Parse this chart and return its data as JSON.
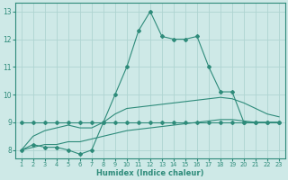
{
  "xlabel": "Humidex (Indice chaleur)",
  "x": [
    1,
    2,
    3,
    4,
    5,
    6,
    7,
    8,
    9,
    10,
    11,
    12,
    13,
    14,
    15,
    16,
    17,
    18,
    19,
    20,
    21,
    22,
    23
  ],
  "line_peak_y": [
    8.0,
    8.2,
    8.1,
    8.1,
    8.0,
    7.85,
    8.0,
    9.0,
    10.0,
    11.0,
    12.3,
    13.0,
    12.1,
    12.0,
    12.0,
    12.1,
    11.0,
    10.1,
    10.1,
    9.0,
    9.0,
    9.0,
    9.0
  ],
  "line_flat_y": [
    9.0,
    9.0,
    9.0,
    9.0,
    9.0,
    9.0,
    9.0,
    9.0,
    9.0,
    9.0,
    9.0,
    9.0,
    9.0,
    9.0,
    9.0,
    9.0,
    9.0,
    9.0,
    9.0,
    9.0,
    9.0,
    9.0,
    9.0
  ],
  "line_ramp_upper_y": [
    8.0,
    8.5,
    8.7,
    8.8,
    8.9,
    8.8,
    8.8,
    9.0,
    9.3,
    9.5,
    9.55,
    9.6,
    9.65,
    9.7,
    9.75,
    9.8,
    9.85,
    9.9,
    9.85,
    9.7,
    9.5,
    9.3,
    9.2
  ],
  "line_ramp_lower_y": [
    8.0,
    8.1,
    8.2,
    8.2,
    8.3,
    8.3,
    8.4,
    8.5,
    8.6,
    8.7,
    8.75,
    8.8,
    8.85,
    8.9,
    8.95,
    9.0,
    9.05,
    9.1,
    9.1,
    9.05,
    9.0,
    9.0,
    9.0
  ],
  "line_color": "#2e8b7a",
  "bg_color": "#cee9e7",
  "grid_color": "#aed4d1",
  "xlim": [
    0.5,
    23.5
  ],
  "ylim": [
    7.7,
    13.3
  ],
  "yticks": [
    8,
    9,
    10,
    11,
    12,
    13
  ],
  "xticks": [
    1,
    2,
    3,
    4,
    5,
    6,
    7,
    8,
    9,
    10,
    11,
    12,
    13,
    14,
    15,
    16,
    17,
    18,
    19,
    20,
    21,
    22,
    23
  ]
}
